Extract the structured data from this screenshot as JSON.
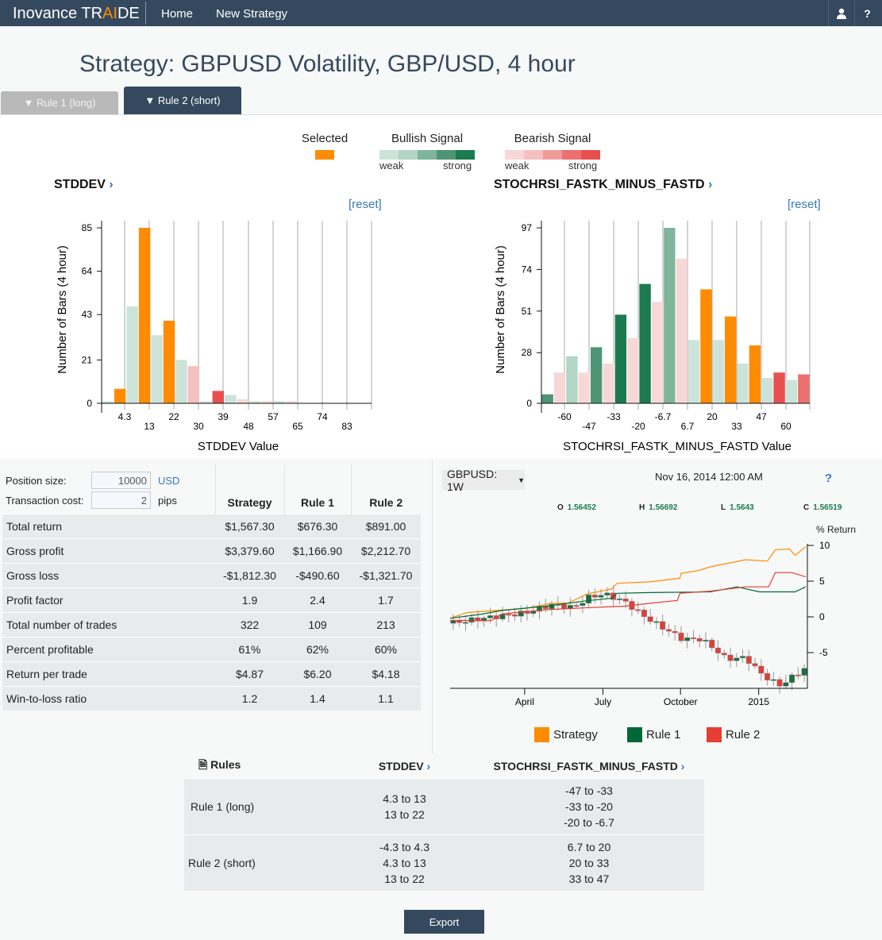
{
  "nav": {
    "brand_pre": "Inovance TR",
    "brand_ai": "AI",
    "brand_post": "DE",
    "links": [
      "Home",
      "New Strategy"
    ],
    "user_icon": "user-icon",
    "help_icon": "?"
  },
  "title": "Strategy: GBPUSD Volatility, GBP/USD, 4 hour",
  "tabs": [
    {
      "label": "Rule 1 (long)",
      "active": false
    },
    {
      "label": "Rule 2 (short)",
      "active": true
    }
  ],
  "legend": {
    "selected": "Selected",
    "bullish": "Bullish Signal",
    "bearish": "Bearish Signal",
    "weak": "weak",
    "strong": "strong"
  },
  "colors": {
    "selected": "#ff8c00",
    "bull": [
      "#cce3da",
      "#b2d5c5",
      "#7fb59b",
      "#4d9574",
      "#1b7a50"
    ],
    "bear": [
      "#f8d7d7",
      "#f5c0c0",
      "#f09a9a",
      "#ec7070",
      "#e85050"
    ],
    "strategy": "#ff8c00",
    "rule1": "#006837",
    "rule2": "#e53e33"
  },
  "reset": "[reset]",
  "chart_data": [
    {
      "type": "bar",
      "title": "STDDEV",
      "xlabel": "STDDEV Value",
      "ylabel": "Number of Bars (4 hour)",
      "yticks": [
        0,
        21,
        43,
        64,
        85
      ],
      "ylim": [
        0,
        85
      ],
      "xticks": [
        "4.3",
        "13",
        "22",
        "30",
        "39",
        "48",
        "57",
        "65",
        "74",
        "83"
      ],
      "values": [
        1,
        7,
        47,
        85,
        33,
        40,
        21,
        18,
        1,
        6,
        4,
        2,
        1,
        1,
        1,
        1,
        0,
        0,
        0,
        0,
        0,
        0
      ],
      "classes": [
        "b1",
        "sel",
        "b1",
        "sel",
        "b1",
        "sel",
        "b1",
        "r2",
        "b1",
        "r5",
        "b1",
        "r1",
        "b1",
        "r1",
        "b1",
        "r1",
        "",
        "",
        "",
        "",
        "",
        ""
      ]
    },
    {
      "type": "bar",
      "title": "STOCHRSI_FASTK_MINUS_FASTD",
      "xlabel": "STOCHRSI_FASTK_MINUS_FASTD Value",
      "ylabel": "Number of Bars (4 hour)",
      "yticks": [
        0,
        28,
        51,
        74,
        97
      ],
      "ylim": [
        0,
        97
      ],
      "xticks": [
        "-60",
        "-47",
        "-33",
        "-20",
        "-6.7",
        "6.7",
        "20",
        "33",
        "47",
        "60"
      ],
      "values": [
        5,
        17,
        26,
        17,
        31,
        22,
        49,
        36,
        66,
        56,
        97,
        80,
        35,
        63,
        35,
        48,
        22,
        32,
        14,
        17,
        13,
        16
      ],
      "classes": [
        "b4",
        "r1",
        "b2",
        "r1",
        "b4",
        "r1",
        "b5",
        "r1",
        "b5",
        "r1",
        "b3",
        "r1",
        "b1",
        "sel",
        "b1",
        "sel",
        "b1",
        "sel",
        "b1",
        "r5",
        "b1",
        "r4"
      ]
    },
    {
      "type": "line",
      "title": "GBPUSD: 1W",
      "ylabel": "% Return",
      "yticks": [
        10,
        5,
        0,
        -5
      ],
      "ylim": [
        -10,
        11.5
      ],
      "xlim": [
        0,
        58
      ],
      "xticks": [
        {
          "label": "April",
          "x": 12.1
        },
        {
          "label": "July",
          "x": 24.8
        },
        {
          "label": "October",
          "x": 37.4
        },
        {
          "label": "2015",
          "x": 50.1
        }
      ],
      "series": [
        {
          "name": "Strategy",
          "points": [
            [
              0,
              -0.2
            ],
            [
              2.7,
              0.6
            ],
            [
              12.4,
              1.2
            ],
            [
              16.4,
              1.9
            ],
            [
              19.1,
              1.9
            ],
            [
              22.2,
              3.2
            ],
            [
              26.2,
              3.9
            ],
            [
              27.1,
              4.7
            ],
            [
              32.4,
              4.9
            ],
            [
              37.3,
              5.4
            ],
            [
              37.5,
              6.1
            ],
            [
              40.4,
              6.5
            ],
            [
              42.2,
              7
            ],
            [
              48,
              8
            ],
            [
              51.5,
              7.8
            ],
            [
              52.8,
              9.4
            ],
            [
              55.1,
              9.5
            ],
            [
              56,
              8.6
            ],
            [
              57.7,
              9.8
            ]
          ]
        },
        {
          "name": "Rule 1",
          "points": [
            [
              0,
              -0.2
            ],
            [
              5.3,
              0.4
            ],
            [
              8.4,
              0.9
            ],
            [
              15.5,
              1.5
            ],
            [
              22.6,
              2.3
            ],
            [
              26.2,
              2.6
            ],
            [
              27.1,
              3.3
            ],
            [
              32.4,
              3.4
            ],
            [
              42.2,
              3.5
            ],
            [
              46.6,
              4.2
            ],
            [
              50.2,
              3.5
            ],
            [
              56,
              3.5
            ],
            [
              57.7,
              4.2
            ]
          ]
        },
        {
          "name": "Rule 2",
          "points": [
            [
              0,
              -0.5
            ],
            [
              6.7,
              -0.5
            ],
            [
              8.4,
              0.4
            ],
            [
              15.5,
              1
            ],
            [
              22.6,
              1.3
            ],
            [
              28.4,
              1.5
            ],
            [
              32.4,
              1.9
            ],
            [
              36.9,
              2.3
            ],
            [
              37.3,
              3.3
            ],
            [
              42.2,
              3.6
            ],
            [
              48,
              4.2
            ],
            [
              51.7,
              4.2
            ],
            [
              52.8,
              6.2
            ],
            [
              55.5,
              6.2
            ],
            [
              57.7,
              5.6
            ]
          ]
        }
      ],
      "price_path": [
        [
          0,
          -0.9
        ],
        [
          6.2,
          -0.1
        ],
        [
          12.4,
          0.6
        ],
        [
          16.4,
          1.7
        ],
        [
          20,
          1.3
        ],
        [
          22.6,
          2.8
        ],
        [
          25.1,
          3.2
        ],
        [
          28.4,
          2.1
        ],
        [
          30.6,
          0.6
        ],
        [
          33.3,
          -0.9
        ],
        [
          35.5,
          -2
        ],
        [
          37.7,
          -3.1
        ],
        [
          40.8,
          -3.1
        ],
        [
          43.1,
          -4.6
        ],
        [
          44.8,
          -5.9
        ],
        [
          48,
          -5.7
        ],
        [
          50,
          -7.6
        ],
        [
          52,
          -8.9
        ],
        [
          53.7,
          -9.6
        ],
        [
          55.7,
          -8.3
        ],
        [
          57.7,
          -7.2
        ]
      ]
    }
  ],
  "price": {
    "selector": "GBPUSD: 1W",
    "date": "Nov 16, 2014 12:00 AM",
    "help": "?",
    "ohlc": [
      {
        "k": "O",
        "v": "1.56452"
      },
      {
        "k": "H",
        "v": "1.56692"
      },
      {
        "k": "L",
        "v": "1.5643"
      },
      {
        "k": "C",
        "v": "1.56519"
      }
    ],
    "ylabel": "% Return",
    "legend": [
      "Strategy",
      "Rule 1",
      "Rule 2"
    ]
  },
  "settings": {
    "position_label": "Position size:",
    "position_value": "10000",
    "position_unit": "USD",
    "cost_label": "Transaction cost:",
    "cost_value": "2",
    "cost_unit": "pips"
  },
  "stats": {
    "headers": [
      "Strategy",
      "Rule 1",
      "Rule 2"
    ],
    "rows": [
      {
        "label": "Total return",
        "v": [
          "$1,567.30",
          "$676.30",
          "$891.00"
        ]
      },
      {
        "label": "Gross profit",
        "v": [
          "$3,379.60",
          "$1,166.90",
          "$2,212.70"
        ]
      },
      {
        "label": "Gross loss",
        "v": [
          "-$1,812.30",
          "-$490.60",
          "-$1,321.70"
        ]
      },
      {
        "label": "Profit factor",
        "v": [
          "1.9",
          "2.4",
          "1.7"
        ]
      },
      {
        "label": "Total number of trades",
        "v": [
          "322",
          "109",
          "213"
        ]
      },
      {
        "label": "Percent profitable",
        "v": [
          "61%",
          "62%",
          "60%"
        ]
      },
      {
        "label": "Return per trade",
        "v": [
          "$4.87",
          "$6.20",
          "$4.18"
        ]
      },
      {
        "label": "Win-to-loss ratio",
        "v": [
          "1.2",
          "1.4",
          "1.1"
        ]
      }
    ]
  },
  "rules": {
    "headers": [
      "Rules",
      "STDDEV",
      "STOCHRSI_FASTK_MINUS_FASTD"
    ],
    "rows": [
      {
        "name": "Rule 1 (long)",
        "stddev": [
          "4.3 to 13",
          "13 to 22"
        ],
        "stoch": [
          "-47 to -33",
          "-33 to -20",
          "-20 to -6.7"
        ]
      },
      {
        "name": "Rule 2 (short)",
        "stddev": [
          "-4.3 to 4.3",
          "4.3 to 13",
          "13 to 22"
        ],
        "stoch": [
          "6.7 to 20",
          "20 to 33",
          "33 to 47"
        ]
      }
    ]
  },
  "export": "Export"
}
